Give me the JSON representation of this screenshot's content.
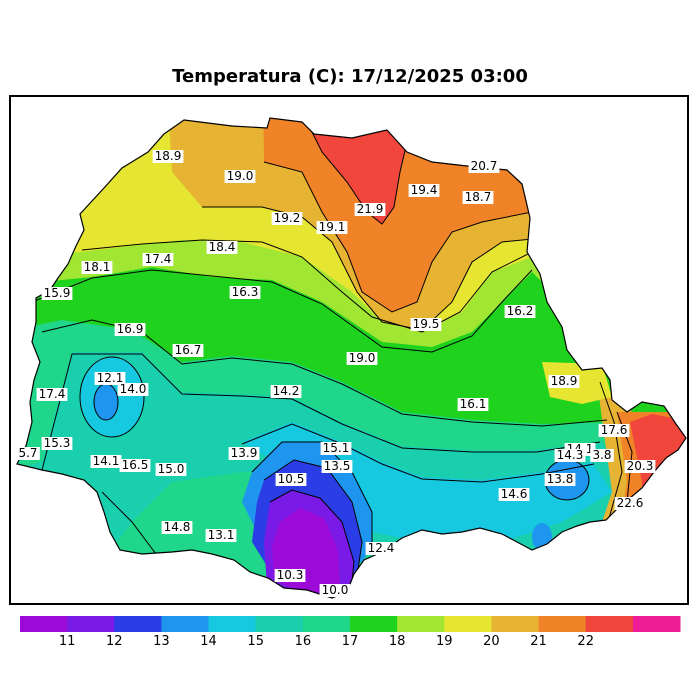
{
  "title": "Temperatura (C): 17/12/2025 03:00",
  "contour_labels": [
    "18.9",
    "19.0",
    "20.7",
    "19.4",
    "18.7",
    "21.9",
    "19.2",
    "19.1",
    "18.4",
    "17.4",
    "18.1",
    "15.9",
    "16.3",
    "16.2",
    "16.9",
    "16.7",
    "19.5",
    "19.0",
    "12.1",
    "14.0",
    "18.9",
    "17.4",
    "14.2",
    "16.1",
    "17.6",
    "15.3",
    "5.7",
    "14.1",
    "16.5",
    "15.0",
    "13.9",
    "15.1",
    "13.5",
    "14.1",
    "14.3",
    "3.8",
    "20.3",
    "10.5",
    "13.8",
    "14.6",
    "22.6",
    "14.8",
    "13.1",
    "12.4",
    "10.3",
    "10.0"
  ],
  "colorbar": {
    "colors": [
      "#9b0ad7",
      "#7a1ae6",
      "#2b3ee6",
      "#1e96f0",
      "#17c8e1",
      "#19cfae",
      "#1fd68a",
      "#1ed21e",
      "#a0e632",
      "#e6e632",
      "#e6b432",
      "#f08228",
      "#f0463c",
      "#f01e96"
    ],
    "ticks": [
      "11",
      "12",
      "13",
      "14",
      "15",
      "16",
      "17",
      "18",
      "19",
      "20",
      "21",
      "22"
    ]
  },
  "chart_data": {
    "type": "heatmap",
    "title": "Temperatura (C): 17/12/2025 03:00",
    "colorbar_range": [
      10,
      23
    ],
    "colorbar_ticks": [
      11,
      12,
      13,
      14,
      15,
      16,
      17,
      18,
      19,
      20,
      21,
      22
    ],
    "contour_values": [
      18.9,
      19.0,
      20.7,
      19.4,
      18.7,
      21.9,
      19.2,
      19.1,
      18.4,
      17.4,
      18.1,
      15.9,
      16.3,
      16.2,
      16.9,
      16.7,
      19.5,
      19.0,
      12.1,
      14.0,
      18.9,
      17.4,
      14.2,
      16.1,
      17.6,
      15.3,
      5.7,
      14.1,
      16.5,
      15.0,
      13.9,
      15.1,
      13.5,
      14.1,
      14.3,
      3.8,
      20.3,
      10.5,
      13.8,
      14.6,
      22.6,
      14.8,
      13.1,
      12.4,
      10.3,
      10.0
    ]
  }
}
